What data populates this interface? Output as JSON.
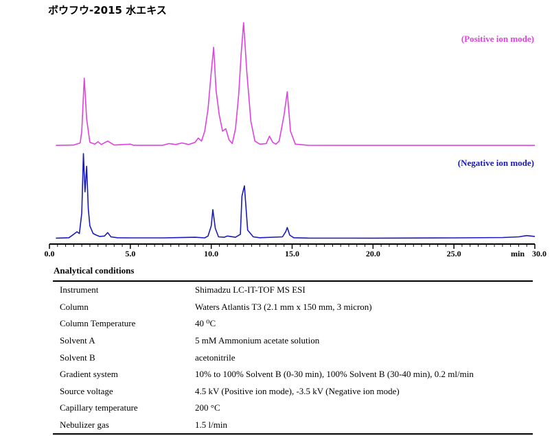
{
  "title": "ボウフウ-2015 水エキス",
  "chart_data": {
    "type": "line",
    "xlabel": "min",
    "xlim": [
      0,
      30
    ],
    "tick_labels": [
      "0.0",
      "5.0",
      "10.0",
      "15.0",
      "20.0",
      "25.0",
      "30.0"
    ],
    "tick_values": [
      0,
      5,
      10,
      15,
      20,
      25,
      30
    ],
    "grid": false,
    "series": [
      {
        "name": "(Positive ion mode)",
        "color": "#e040e0",
        "x": [
          0.4,
          1.5,
          1.9,
          2.0,
          2.15,
          2.3,
          2.5,
          2.8,
          3.0,
          3.2,
          3.6,
          4.0,
          5.0,
          5.2,
          7.0,
          7.4,
          7.8,
          8.2,
          8.6,
          9.0,
          9.2,
          9.4,
          9.6,
          9.8,
          10.0,
          10.15,
          10.3,
          10.5,
          10.7,
          10.9,
          11.1,
          11.3,
          11.5,
          11.7,
          11.85,
          12.0,
          12.2,
          12.45,
          12.7,
          13.0,
          13.4,
          13.6,
          13.8,
          14.0,
          14.2,
          14.5,
          14.7,
          14.9,
          15.2,
          16.0,
          20.0,
          25.0,
          30.0
        ],
        "y": [
          0.5,
          0.8,
          2.5,
          12.0,
          55.0,
          22.0,
          3.0,
          1.5,
          3.5,
          1.2,
          4.0,
          0.8,
          1.5,
          0.6,
          0.6,
          2.0,
          1.2,
          2.5,
          1.2,
          3.0,
          6.5,
          4.0,
          12.0,
          30.0,
          60.0,
          80.0,
          45.0,
          25.0,
          12.0,
          14.0,
          5.0,
          2.0,
          14.0,
          42.0,
          75.0,
          100.0,
          60.0,
          20.0,
          4.0,
          1.5,
          2.0,
          8.0,
          3.0,
          1.5,
          4.0,
          25.0,
          44.0,
          12.0,
          1.5,
          0.6,
          0.5,
          0.5,
          0.5
        ]
      },
      {
        "name": "(Negative ion mode)",
        "color": "#1a1ab8",
        "x": [
          0.4,
          1.2,
          1.5,
          1.7,
          1.85,
          2.0,
          2.1,
          2.2,
          2.3,
          2.4,
          2.5,
          2.7,
          2.9,
          3.1,
          3.4,
          3.6,
          3.8,
          4.2,
          5.0,
          7.0,
          9.0,
          9.6,
          9.8,
          10.0,
          10.1,
          10.25,
          10.45,
          10.8,
          11.0,
          11.5,
          11.8,
          11.9,
          12.05,
          12.25,
          12.6,
          13.0,
          14.4,
          14.6,
          14.7,
          14.85,
          15.1,
          16.0,
          20.0,
          25.0,
          28.0,
          29.0,
          29.5,
          30.0
        ],
        "y": [
          0.5,
          1.0,
          5.0,
          8.0,
          6.0,
          30.0,
          100.0,
          55.0,
          85.0,
          35.0,
          15.0,
          6.0,
          4.0,
          2.5,
          3.0,
          7.0,
          2.0,
          1.0,
          0.8,
          0.8,
          1.5,
          0.8,
          3.0,
          15.0,
          34.0,
          12.0,
          2.0,
          1.5,
          3.0,
          1.5,
          5.0,
          50.0,
          62.0,
          10.0,
          2.0,
          1.0,
          2.0,
          8.0,
          13.0,
          4.0,
          1.0,
          0.6,
          0.5,
          0.8,
          1.2,
          2.0,
          3.5,
          2.5
        ]
      }
    ]
  },
  "conditions": {
    "heading": "Analytical conditions",
    "rows": [
      {
        "key": "Instrument",
        "value": "Shimadzu LC-IT-TOF MS ESI"
      },
      {
        "key": "Column",
        "value": "Waters Atlantis T3 (2.1 mm x 150 mm, 3 micron)"
      },
      {
        "key": "Column Temperature",
        "value": "40 ⁰C"
      },
      {
        "key": "Solvent A",
        "value": "5 mM Ammonium acetate solution"
      },
      {
        "key": "Solvent B",
        "value": "acetonitrile"
      },
      {
        "key": "Gradient system",
        "value": "10% to 100% Solvent B (0-30 min), 100% Solvent B (30-40 min), 0.2 ml/min"
      },
      {
        "key": "Source voltage",
        "value": "4.5 kV (Positive ion mode), -3.5 kV (Negative ion mode)"
      },
      {
        "key": "Capillary temperature",
        "value": "200 °C"
      },
      {
        "key": "Nebulizer gas",
        "value": "1.5 l/min"
      }
    ]
  }
}
